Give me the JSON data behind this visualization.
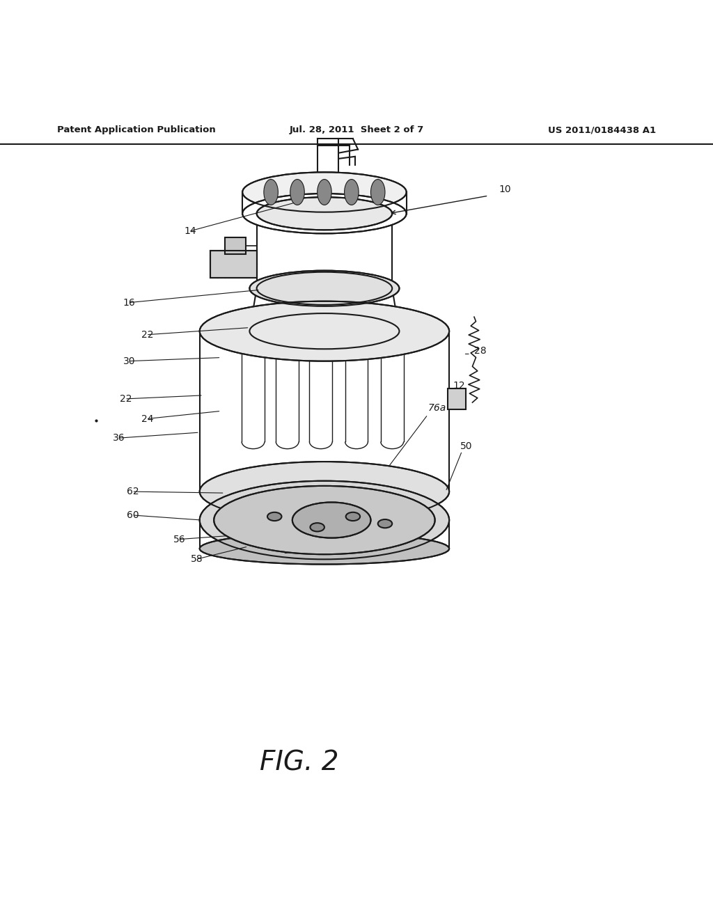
{
  "header_left": "Patent Application Publication",
  "header_mid": "Jul. 28, 2011  Sheet 2 of 7",
  "header_right": "US 2011/0184438 A1",
  "figure_label": "FIG. 2",
  "background_color": "#ffffff",
  "line_color": "#1a1a1a"
}
